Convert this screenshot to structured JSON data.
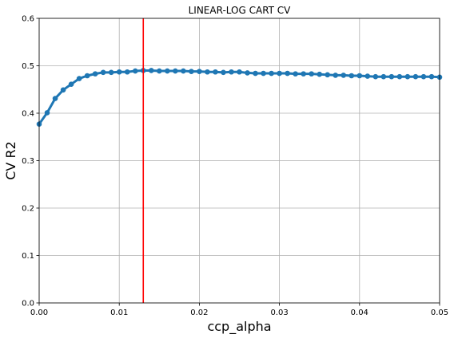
{
  "chart_data": {
    "type": "line",
    "title": "LINEAR-LOG CART CV",
    "xlabel": "ccp_alpha",
    "ylabel": "CV R2",
    "xlim": [
      0.0,
      0.05
    ],
    "ylim": [
      0.0,
      0.6
    ],
    "grid": true,
    "x_ticks": [
      "0.00",
      "0.01",
      "0.02",
      "0.03",
      "0.04",
      "0.05"
    ],
    "y_ticks": [
      "0.0",
      "0.1",
      "0.2",
      "0.3",
      "0.4",
      "0.5",
      "0.6"
    ],
    "x_tick_values": [
      0.0,
      0.01,
      0.02,
      0.03,
      0.04,
      0.05
    ],
    "y_tick_values": [
      0.0,
      0.1,
      0.2,
      0.3,
      0.4,
      0.5,
      0.6
    ],
    "series": [
      {
        "color": "#1f77b4",
        "x": [
          0.0,
          0.001,
          0.002,
          0.003,
          0.004,
          0.005,
          0.006,
          0.007,
          0.008,
          0.009,
          0.01,
          0.011,
          0.012,
          0.013,
          0.014,
          0.015,
          0.016,
          0.017,
          0.018,
          0.019,
          0.02,
          0.021,
          0.022,
          0.023,
          0.024,
          0.025,
          0.026,
          0.027,
          0.028,
          0.029,
          0.03,
          0.031,
          0.032,
          0.033,
          0.034,
          0.035,
          0.036,
          0.037,
          0.038,
          0.039,
          0.04,
          0.041,
          0.042,
          0.043,
          0.044,
          0.045,
          0.046,
          0.047,
          0.048,
          0.049,
          0.05
        ],
        "y": [
          0.377,
          0.401,
          0.431,
          0.449,
          0.461,
          0.473,
          0.479,
          0.483,
          0.486,
          0.486,
          0.487,
          0.487,
          0.489,
          0.49,
          0.49,
          0.489,
          0.489,
          0.489,
          0.489,
          0.488,
          0.488,
          0.487,
          0.487,
          0.486,
          0.487,
          0.487,
          0.485,
          0.484,
          0.484,
          0.484,
          0.484,
          0.484,
          0.483,
          0.483,
          0.483,
          0.482,
          0.481,
          0.48,
          0.48,
          0.479,
          0.479,
          0.478,
          0.477,
          0.477,
          0.477,
          0.477,
          0.477,
          0.477,
          0.477,
          0.477,
          0.476
        ]
      }
    ],
    "vline": {
      "x": 0.013,
      "color": "#ff0000"
    }
  }
}
